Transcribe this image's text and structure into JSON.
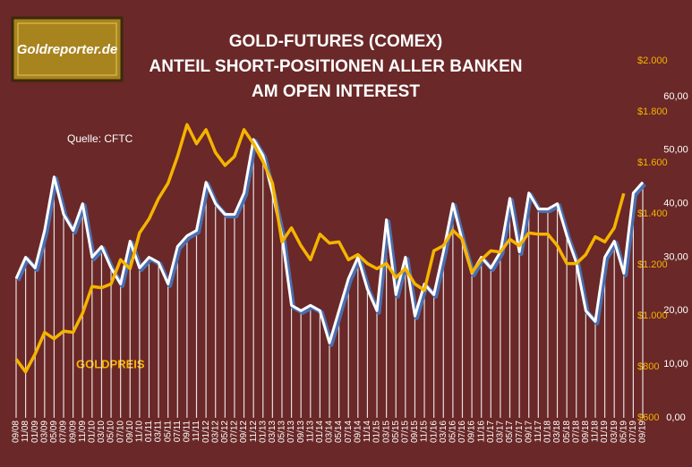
{
  "logo": "Goldreporter.de",
  "chart_data": {
    "type": "line",
    "title": [
      "GOLD-FUTURES (COMEX)",
      "ANTEIL SHORT-POSITIONEN ALLER BANKEN",
      "AM OPEN INTEREST"
    ],
    "source": "Quelle: CFTC",
    "categories": [
      "09/08",
      "11/08",
      "01/09",
      "03/09",
      "05/09",
      "07/09",
      "09/09",
      "11/09",
      "01/10",
      "03/10",
      "05/10",
      "07/10",
      "09/10",
      "11/10",
      "01/11",
      "03/11",
      "05/11",
      "07/11",
      "09/11",
      "11/11",
      "01/12",
      "03/12",
      "05/12",
      "07/12",
      "09/12",
      "11/12",
      "01/13",
      "03/13",
      "05/13",
      "07/13",
      "09/13",
      "11/13",
      "01/14",
      "03/14",
      "05/14",
      "07/14",
      "09/14",
      "11/14",
      "01/15",
      "03/15",
      "05/15",
      "07/15",
      "09/15",
      "11/15",
      "01/16",
      "03/16",
      "05/16",
      "07/16",
      "09/16",
      "11/16",
      "01/17",
      "03/17",
      "05/17",
      "07/17",
      "09/17",
      "11/17",
      "01/18",
      "03/18",
      "05/18",
      "07/18",
      "09/18",
      "11/18",
      "01/19",
      "03/19",
      "05/19",
      "07/19",
      "09/19"
    ],
    "series": [
      {
        "color": "#ffffff",
        "values": [
          26,
          30,
          28,
          35,
          45,
          38,
          35,
          40,
          30,
          32,
          28,
          25,
          33,
          28,
          30,
          29,
          25,
          32,
          34,
          35,
          44,
          40,
          38,
          38,
          42,
          52,
          49,
          42,
          34,
          21,
          20,
          21,
          20,
          14,
          20,
          26,
          30,
          24,
          20,
          37,
          23,
          30,
          19,
          25,
          23,
          31,
          40,
          33,
          27,
          30,
          28,
          31,
          41,
          31,
          42,
          39,
          39,
          40,
          34,
          29,
          20,
          18,
          30,
          33,
          27,
          42,
          44
        ]
      },
      {
        "name": "GOLDPREIS",
        "color": "#f5b400",
        "axis": "y2",
        "values": [
          830,
          780,
          850,
          935,
          910,
          940,
          935,
          1010,
          1115,
          1110,
          1125,
          1220,
          1185,
          1325,
          1380,
          1460,
          1520,
          1625,
          1750,
          1675,
          1730,
          1640,
          1590,
          1625,
          1730,
          1675,
          1605,
          1520,
          1290,
          1345,
          1275,
          1220,
          1320,
          1285,
          1290,
          1220,
          1240,
          1205,
          1185,
          1205,
          1150,
          1185,
          1125,
          1100,
          1255,
          1275,
          1335,
          1300,
          1170,
          1220,
          1255,
          1250,
          1300,
          1275,
          1325,
          1320,
          1320,
          1275,
          1205,
          1205,
          1240,
          1310,
          1290,
          1345,
          1480,
          null,
          null
        ]
      }
    ],
    "ylim": [
      0,
      60
    ],
    "yticks": [
      {
        "value": 0,
        "label": "0,00"
      },
      {
        "value": 10,
        "label": "10,00"
      },
      {
        "value": 20,
        "label": "20,00"
      },
      {
        "value": 30,
        "label": "30,00"
      },
      {
        "value": 40,
        "label": "40,00"
      },
      {
        "value": 50,
        "label": "50,00"
      },
      {
        "value": 60,
        "label": "60,00"
      }
    ],
    "y2lim": [
      600,
      2000
    ],
    "y2ticks": [
      {
        "value": 600,
        "label": "$600"
      },
      {
        "value": 800,
        "label": "$800"
      },
      {
        "value": 1000,
        "label": "$1.000"
      },
      {
        "value": 1200,
        "label": "$1.200"
      },
      {
        "value": 1400,
        "label": "$1.400"
      },
      {
        "value": 1600,
        "label": "$1.600"
      },
      {
        "value": 1800,
        "label": "$1.800"
      },
      {
        "value": 2000,
        "label": "$2.000"
      }
    ]
  }
}
